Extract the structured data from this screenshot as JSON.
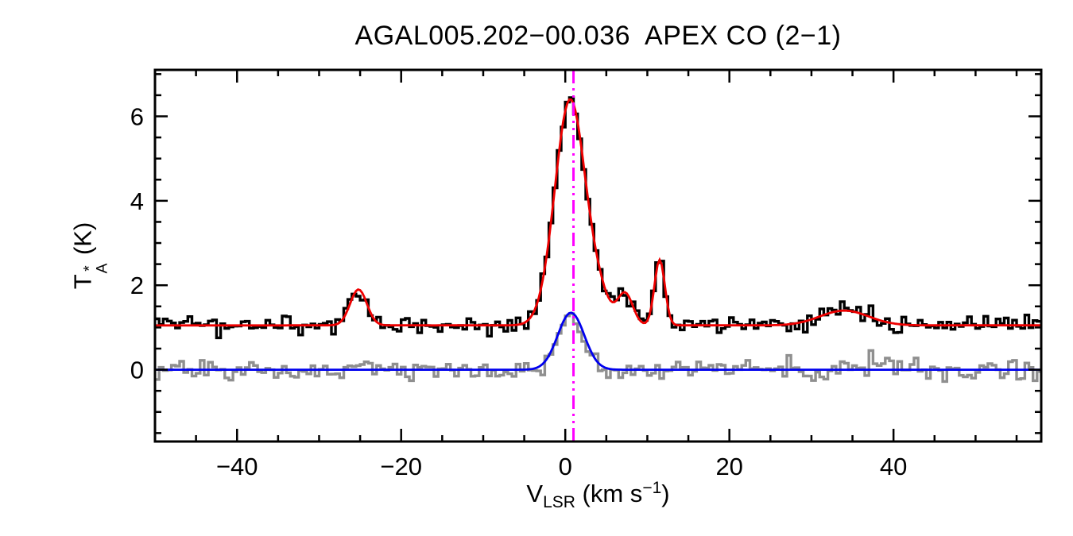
{
  "chart_data": {
    "type": "line",
    "title": "AGAL005.202−00.036  APEX CO (2−1)",
    "xlabel": {
      "base": "V",
      "sub": "LSR",
      "unit_open": " (km s",
      "sup": "−1",
      "unit_close": ")"
    },
    "ylabel": {
      "base": "T",
      "sup": "*",
      "sub": "A",
      "unit": " (K)"
    },
    "xlim": [
      -50,
      58
    ],
    "ylim": [
      -1.7,
      7.1
    ],
    "x_major_ticks": [
      {
        "value": -40,
        "label": "−40"
      },
      {
        "value": -20,
        "label": "−20"
      },
      {
        "value": 0,
        "label": "0"
      },
      {
        "value": 20,
        "label": "20"
      },
      {
        "value": 40,
        "label": "40"
      }
    ],
    "x_minor_step": 5,
    "y_major_ticks": [
      {
        "value": 0,
        "label": "0"
      },
      {
        "value": 2,
        "label": "2"
      },
      {
        "value": 4,
        "label": "4"
      },
      {
        "value": 6,
        "label": "6"
      }
    ],
    "y_minor_step": 0.5,
    "axis_color": "#000000",
    "grid": false,
    "legend": false,
    "vline": {
      "x": 1.0,
      "color": "#ff00ff",
      "style": "dash-dot-dot"
    },
    "series": [
      {
        "name": "observed-spectrum",
        "color": "#000000",
        "style": "histogram",
        "line_width": 3.4,
        "bin_width": 0.5,
        "baseline": 1.05,
        "noise_sigma": 0.11,
        "gaussians": [
          {
            "center": -25.2,
            "amplitude": 0.85,
            "fwhm": 2.4
          },
          {
            "center": 0.6,
            "amplitude": 5.35,
            "fwhm": 4.4
          },
          {
            "center": 4.2,
            "amplitude": 0.5,
            "fwhm": 3.0
          },
          {
            "center": 7.3,
            "amplitude": 0.75,
            "fwhm": 2.2
          },
          {
            "center": 11.5,
            "amplitude": 1.55,
            "fwhm": 1.5
          },
          {
            "center": 34.0,
            "amplitude": 0.35,
            "fwhm": 7.0
          }
        ]
      },
      {
        "name": "reference-spectrum",
        "color": "#8f8f8f",
        "style": "histogram",
        "line_width": 3.4,
        "bin_width": 0.5,
        "baseline": 0.0,
        "noise_sigma": 0.13,
        "gaussians": [
          {
            "center": 0.7,
            "amplitude": 1.35,
            "fwhm": 3.8
          }
        ]
      },
      {
        "name": "gaussian-fit-observed",
        "color": "#ee0000",
        "style": "smooth",
        "line_width": 2.8,
        "baseline": 1.05,
        "noise_sigma": 0,
        "gaussians": [
          {
            "center": -25.2,
            "amplitude": 0.85,
            "fwhm": 2.4
          },
          {
            "center": 0.6,
            "amplitude": 5.35,
            "fwhm": 4.4
          },
          {
            "center": 4.2,
            "amplitude": 0.5,
            "fwhm": 3.0
          },
          {
            "center": 7.3,
            "amplitude": 0.75,
            "fwhm": 2.2
          },
          {
            "center": 11.5,
            "amplitude": 1.55,
            "fwhm": 1.5
          },
          {
            "center": 34.0,
            "amplitude": 0.35,
            "fwhm": 7.0
          }
        ]
      },
      {
        "name": "gaussian-fit-reference",
        "color": "#0000ee",
        "style": "smooth",
        "line_width": 2.8,
        "baseline": 0.0,
        "noise_sigma": 0,
        "gaussians": [
          {
            "center": 0.7,
            "amplitude": 1.35,
            "fwhm": 3.8
          }
        ]
      }
    ]
  }
}
